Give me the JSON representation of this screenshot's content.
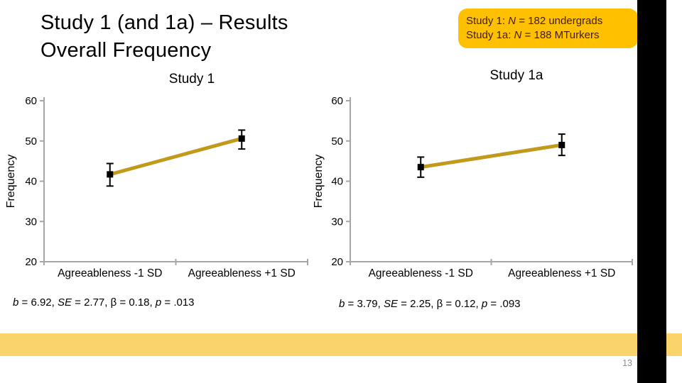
{
  "slide": {
    "title_line1": "Study 1 (and 1a) – Results",
    "title_line2": "Overall Frequency",
    "page_number": "13"
  },
  "note_box": {
    "line1": {
      "pre": "Study 1: ",
      "n": "N",
      "post": " = 182 undergrads"
    },
    "line2": {
      "pre": "Study 1a: ",
      "n": "N",
      "post": " = 188 MTurkers"
    }
  },
  "study1": {
    "chart_title": "Study 1",
    "stats": {
      "segments": [
        {
          "text": "b",
          "italic": true
        },
        {
          "text": " = 6.92, ",
          "italic": false
        },
        {
          "text": "SE",
          "italic": true
        },
        {
          "text": " = 2.77, β = 0.18, ",
          "italic": false
        },
        {
          "text": "p",
          "italic": true
        },
        {
          "text": " = .013",
          "italic": false
        }
      ]
    }
  },
  "study1a": {
    "chart_title": "Study 1a",
    "stats": {
      "segments": [
        {
          "text": "b",
          "italic": true
        },
        {
          "text": " = 3.79, ",
          "italic": false
        },
        {
          "text": "SE",
          "italic": true
        },
        {
          "text": " = 2.25, β = 0.12, ",
          "italic": false
        },
        {
          "text": "p",
          "italic": true
        },
        {
          "text": " = .093",
          "italic": false
        }
      ]
    }
  },
  "chart_data": [
    {
      "type": "line",
      "title": "Study 1",
      "xlabel": "",
      "ylabel": "Frequency",
      "ylim": [
        20,
        60
      ],
      "yticks": [
        20,
        30,
        40,
        50,
        60
      ],
      "categories": [
        "Agreeableness -1 SD",
        "Agreeableness +1 SD"
      ],
      "series": [
        {
          "name": "Frequency",
          "values": [
            41.7,
            50.6
          ],
          "error_low": [
            38.8,
            48.0
          ],
          "error_high": [
            44.4,
            52.7
          ]
        }
      ],
      "grid": false,
      "legend": false,
      "annotation": "b = 6.92, SE = 2.77, β = 0.18, p = .013"
    },
    {
      "type": "line",
      "title": "Study 1a",
      "xlabel": "",
      "ylabel": "Frequency",
      "ylim": [
        20,
        60
      ],
      "yticks": [
        20,
        30,
        40,
        50,
        60
      ],
      "categories": [
        "Agreeableness -1 SD",
        "Agreeableness +1 SD"
      ],
      "series": [
        {
          "name": "Frequency",
          "values": [
            43.5,
            49.0
          ],
          "error_low": [
            41.0,
            46.4
          ],
          "error_high": [
            46.0,
            51.7
          ]
        }
      ],
      "grid": false,
      "legend": false,
      "annotation": "b = 3.79, SE = 2.25, β = 0.12, p = .093"
    }
  ],
  "colors": {
    "note_box_bg": "#FFC000",
    "note_box_text": "#3F1D1A",
    "data_line": "#C19A1B",
    "axis": "#A6A6A6",
    "marker": "#000000",
    "footer_band": "#FAD46B",
    "side_bar": "#000000",
    "page_number": "#8C8C8C"
  }
}
